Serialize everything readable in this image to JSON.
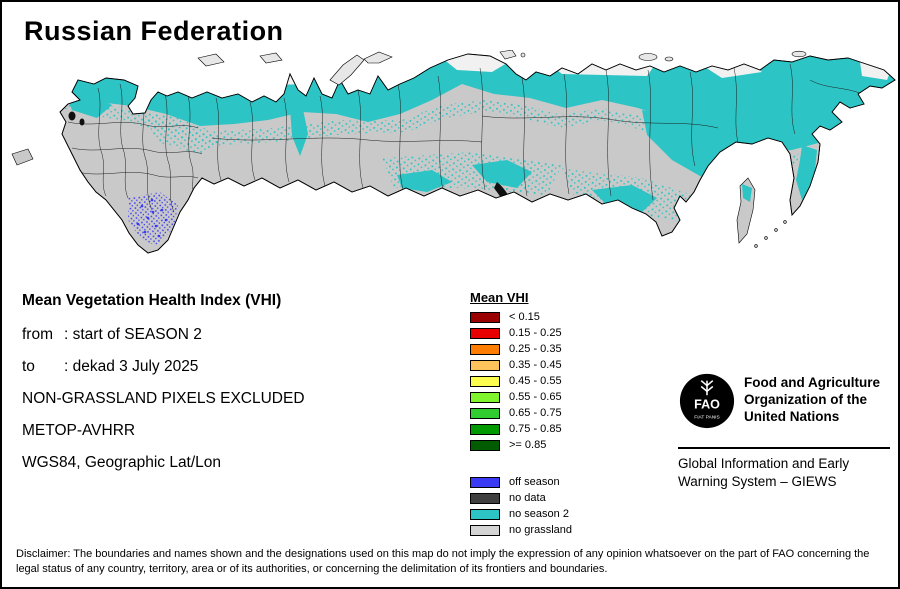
{
  "page": {
    "title": "Russian Federation"
  },
  "info": {
    "heading": "Mean Vegetation Health Index (VHI)",
    "from_label": "from",
    "from_value": ": start of SEASON 2",
    "to_label": "to",
    "to_value": ": dekad 3 July 2025",
    "line_grassland": "NON-GRASSLAND PIXELS EXCLUDED",
    "line_sensor": "METOP-AVHRR",
    "line_projection": "WGS84, Geographic Lat/Lon"
  },
  "legend": {
    "title": "Mean VHI",
    "classes": [
      {
        "label": "< 0.15",
        "color": "#9b0000"
      },
      {
        "label": "0.15 - 0.25",
        "color": "#e80000"
      },
      {
        "label": "0.25 - 0.35",
        "color": "#ff7d00"
      },
      {
        "label": "0.35 - 0.45",
        "color": "#ffc35c"
      },
      {
        "label": "0.45 - 0.55",
        "color": "#fdfd4e"
      },
      {
        "label": "0.55 - 0.65",
        "color": "#80f52d"
      },
      {
        "label": "0.65 - 0.75",
        "color": "#30cc30"
      },
      {
        "label": "0.75 - 0.85",
        "color": "#009a00"
      },
      {
        "label": ">= 0.85",
        "color": "#015c01"
      }
    ],
    "special": [
      {
        "label": "off season",
        "color": "#3a3af5"
      },
      {
        "label": "no data",
        "color": "#3f3f3f"
      },
      {
        "label": "no season 2",
        "color": "#2cc4c4"
      },
      {
        "label": "no grassland",
        "color": "#d4d4d4"
      }
    ]
  },
  "org": {
    "logo_acronym": "FAO",
    "logo_motto": "FIAT PANIS",
    "name": "Food and Agriculture Organization of the United Nations",
    "system": "Global Information and Early Warning System – GIEWS"
  },
  "disclaimer": "Disclaimer: The boundaries and names shown and the designations used on this map do not imply the expression of any opinion whatsoever on the part of FAO concerning the legal status of any country, territory, area or of its authorities, or concerning the delimitation of its frontiers and boundaries.",
  "map": {
    "colors": {
      "land_no_grassland": "#c9c9c9",
      "no_season2": "#2cc4c4",
      "off_season": "#3a3af5",
      "no_data": "#3f3f3f",
      "water_background": "#ffffff",
      "boundaries": "#000000"
    }
  }
}
